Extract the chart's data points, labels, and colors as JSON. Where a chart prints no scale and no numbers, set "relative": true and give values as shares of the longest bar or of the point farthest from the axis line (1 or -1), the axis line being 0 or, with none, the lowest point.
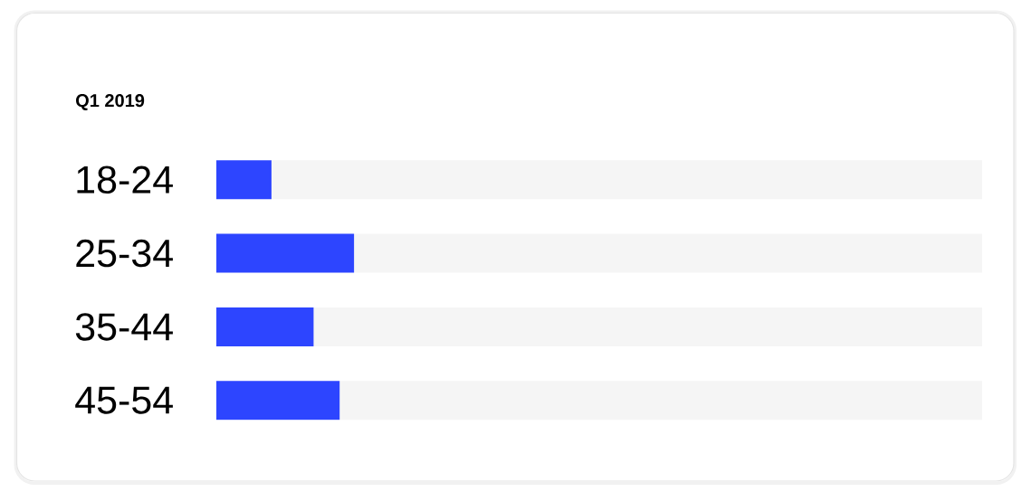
{
  "chart_data": {
    "type": "bar",
    "title": "Q1 2019",
    "orientation": "horizontal",
    "stacked": true,
    "relative": true,
    "categories": [
      "18-24",
      "25-34",
      "35-44",
      "45-54"
    ],
    "series": [
      {
        "color": "#2d45ff",
        "values": [
          0.072,
          0.18,
          0.127,
          0.161
        ]
      },
      {
        "color": "#f5f5f5",
        "values": [
          0.928,
          0.82,
          0.873,
          0.839
        ]
      }
    ]
  }
}
